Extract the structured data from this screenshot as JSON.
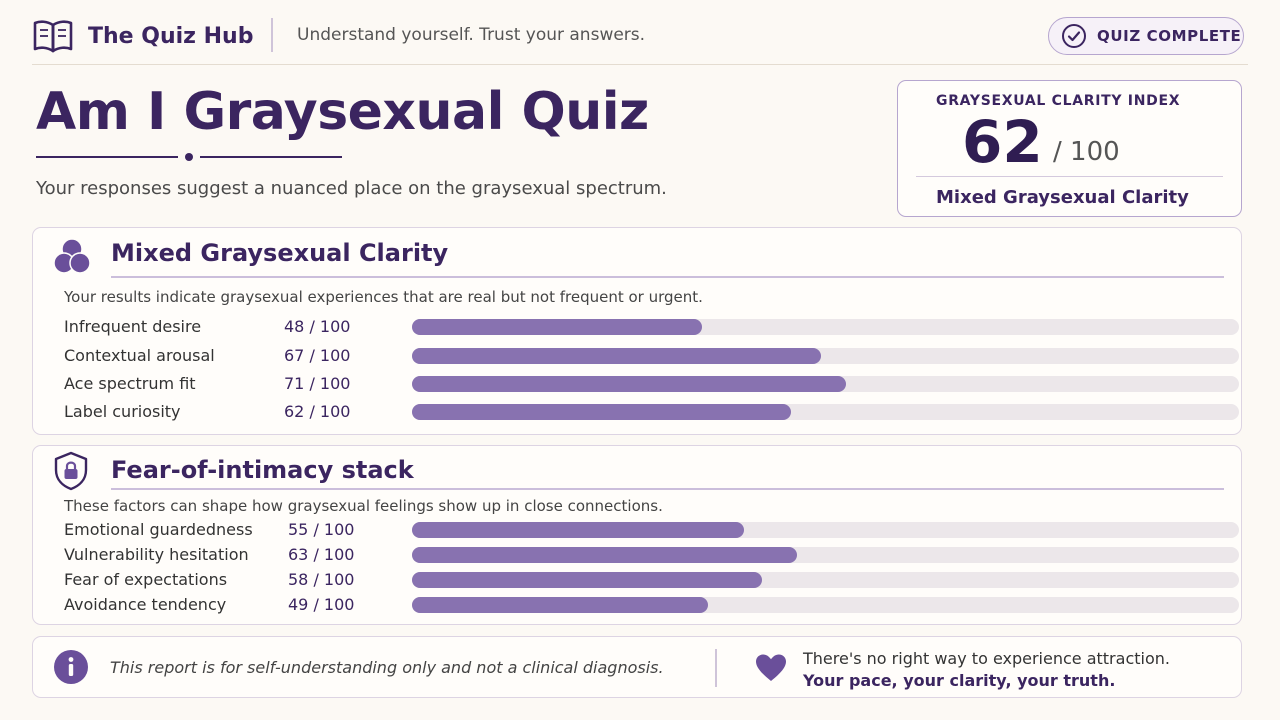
{
  "header": {
    "brand_name": "The Quiz Hub",
    "tagline": "Understand yourself. Trust your answers.",
    "status_label": "QUIZ COMPLETE",
    "icons": {
      "brand": "open-book-icon",
      "status": "check-circle-icon"
    }
  },
  "title": {
    "text": "Am I Graysexual Quiz",
    "subtitle": "Your responses suggest a nuanced place on the graysexual spectrum."
  },
  "index": {
    "label": "GRAYSEXUAL CLARITY INDEX",
    "value": "62",
    "max": "/ 100",
    "caption": "Mixed Graysexual Clarity"
  },
  "sections": [
    {
      "heading": "Mixed Graysexual Clarity",
      "icon": "overlapping-circles-icon",
      "description": "Your results indicate graysexual experiences that are real but not frequent or urgent.",
      "metrics": [
        {
          "label": "Infrequent desire",
          "score": "48 / 100",
          "value": 48
        },
        {
          "label": "Contextual arousal",
          "score": "67 / 100",
          "value": 67
        },
        {
          "label": "Ace spectrum fit",
          "score": "71 / 100",
          "value": 71
        },
        {
          "label": "Label curiosity",
          "score": "62 / 100",
          "value": 62
        }
      ]
    },
    {
      "heading": "Fear-of-intimacy stack",
      "icon": "shield-lock-icon",
      "description": "These factors can shape how graysexual feelings show up in close connections.",
      "metrics": [
        {
          "label": "Emotional guardedness",
          "score": "55 / 100",
          "value": 55
        },
        {
          "label": "Vulnerability hesitation",
          "score": "63 / 100",
          "value": 63
        },
        {
          "label": "Fear of expectations",
          "score": "58 / 100",
          "value": 58
        },
        {
          "label": "Avoidance tendency",
          "score": "49 / 100",
          "value": 49
        }
      ]
    }
  ],
  "footer": {
    "disclaimer": "This report is for self-understanding only and not a clinical diagnosis.",
    "affirmation_line1": "There's no right way to experience attraction.",
    "affirmation_line2": "Your pace, your clarity, your truth.",
    "icons": {
      "info": "info-circle-icon",
      "heart": "heart-icon"
    }
  },
  "colors": {
    "primary": "#3b2560",
    "bar_fill": "#8872b0",
    "bar_track": "#ece7ea",
    "background": "#fcf9f4"
  }
}
